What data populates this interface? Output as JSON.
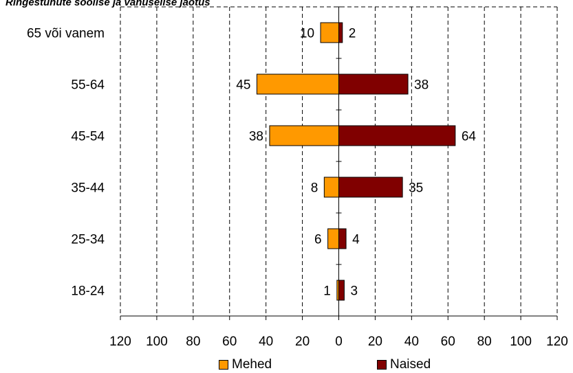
{
  "chart_data": {
    "type": "bar",
    "orientation": "horizontal",
    "title": "Ringestunute soolise ja vanuselise jaotus",
    "categories": [
      "65 või vanem",
      "55-64",
      "45-54",
      "35-44",
      "25-34",
      "18-24"
    ],
    "series": [
      {
        "name": "Mehed",
        "values": [
          10,
          45,
          38,
          8,
          6,
          1
        ],
        "color": "#FF9900",
        "side": "left"
      },
      {
        "name": "Naised",
        "values": [
          2,
          38,
          64,
          35,
          4,
          3
        ],
        "color": "#800000",
        "side": "right"
      }
    ],
    "x_ticks": [
      "120",
      "100",
      "80",
      "60",
      "40",
      "20",
      "0",
      "20",
      "40",
      "60",
      "80",
      "100",
      "120"
    ],
    "xlim": [
      -120,
      120
    ],
    "grid": true,
    "legend_position": "bottom"
  }
}
